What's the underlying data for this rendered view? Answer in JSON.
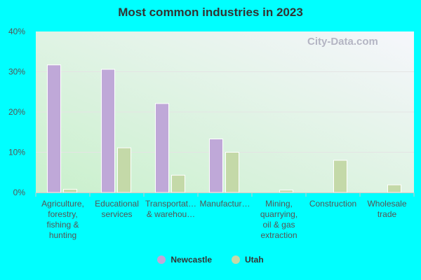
{
  "chart_data": {
    "type": "bar",
    "title": "Most common industries in 2023",
    "categories": [
      [
        "Agriculture,",
        "forestry,",
        "fishing &",
        "hunting"
      ],
      [
        "Educational",
        "services"
      ],
      [
        "Transportat…",
        "& warehou…"
      ],
      [
        "Manufactur…"
      ],
      [
        "Mining,",
        "quarrying,",
        "oil & gas",
        "extraction"
      ],
      [
        "Construction"
      ],
      [
        "Wholesale",
        "trade"
      ]
    ],
    "series": [
      {
        "name": "Newcastle",
        "color": "#bfa8d8",
        "values": [
          31.7,
          30.6,
          22.1,
          13.3,
          0,
          0,
          0
        ]
      },
      {
        "name": "Utah",
        "color": "#c4d9a8",
        "values": [
          0.8,
          11.1,
          4.3,
          10.0,
          0.6,
          8.0,
          1.9
        ]
      }
    ],
    "ylim": [
      0,
      40
    ],
    "yticks": [
      "0%",
      "10%",
      "20%",
      "30%",
      "40%"
    ],
    "grid": true,
    "legend": "bottom",
    "watermark": "City-Data.com"
  }
}
